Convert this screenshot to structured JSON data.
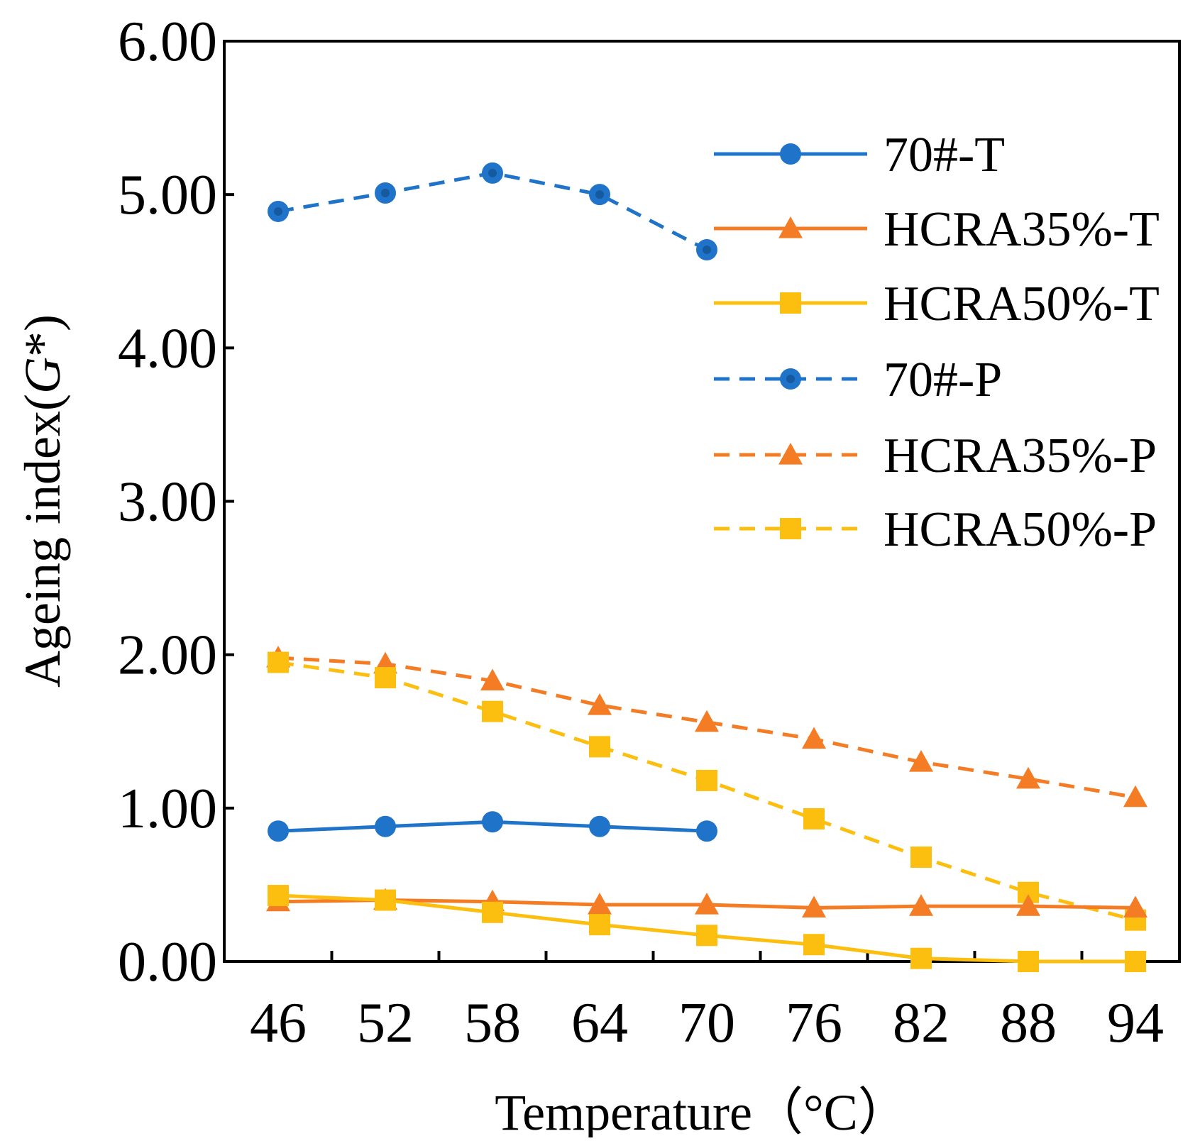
{
  "chart_data": {
    "type": "line",
    "title": "",
    "xlabel": "Temperature（°C）",
    "ylabel_prefix": "Ageing index(",
    "ylabel_italic": "G",
    "ylabel_suffix": "*)",
    "ylim": [
      0,
      6
    ],
    "yticks": [
      "0.00",
      "1.00",
      "2.00",
      "3.00",
      "4.00",
      "5.00",
      "6.00"
    ],
    "ytick_values": [
      0,
      1,
      2,
      3,
      4,
      5,
      6
    ],
    "categories": [
      "46",
      "52",
      "58",
      "64",
      "70",
      "76",
      "82",
      "88",
      "94"
    ],
    "legend_position": "top-right",
    "series": [
      {
        "name": "70#-T",
        "color": "#1f74c9",
        "marker": "circle",
        "dashed": false,
        "values": [
          0.85,
          0.88,
          0.91,
          0.88,
          0.85,
          null,
          null,
          null,
          null
        ]
      },
      {
        "name": "HCRA35%-T",
        "color": "#f47c25",
        "marker": "triangle",
        "dashed": false,
        "values": [
          0.39,
          0.4,
          0.39,
          0.37,
          0.37,
          0.35,
          0.36,
          0.36,
          0.35
        ]
      },
      {
        "name": "HCRA50%-T",
        "color": "#fcbf10",
        "marker": "square",
        "dashed": false,
        "values": [
          0.43,
          0.4,
          0.32,
          0.24,
          0.17,
          0.11,
          0.02,
          0.0,
          0.0
        ]
      },
      {
        "name": "70#-P",
        "color": "#1f74c9",
        "marker": "circle",
        "dashed": true,
        "values": [
          4.89,
          5.01,
          5.14,
          5.0,
          4.64,
          null,
          null,
          null,
          null
        ]
      },
      {
        "name": "HCRA35%-P",
        "color": "#f47c25",
        "marker": "triangle",
        "dashed": true,
        "values": [
          1.98,
          1.94,
          1.83,
          1.67,
          1.56,
          1.45,
          1.3,
          1.19,
          1.07
        ]
      },
      {
        "name": "HCRA50%-P",
        "color": "#fcbf10",
        "marker": "square",
        "dashed": true,
        "values": [
          1.95,
          1.85,
          1.63,
          1.4,
          1.18,
          0.93,
          0.68,
          0.45,
          0.27
        ]
      }
    ]
  }
}
